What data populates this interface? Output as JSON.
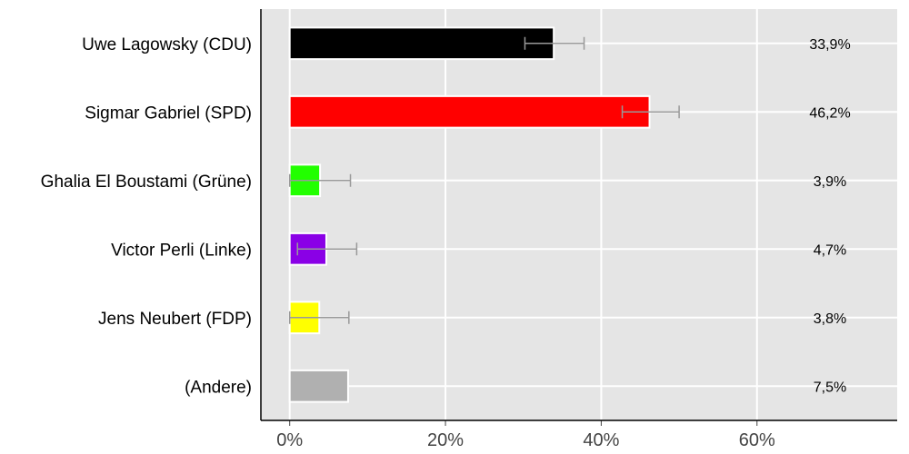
{
  "chart_data": {
    "type": "bar",
    "orientation": "horizontal",
    "categories": [
      "Uwe Lagowsky (CDU)",
      "Sigmar Gabriel (SPD)",
      "Ghalia El Boustami (Grüne)",
      "Victor Perli (Linke)",
      "Jens Neubert (FDP)",
      "(Andere)"
    ],
    "values": [
      33.9,
      46.2,
      3.9,
      4.7,
      3.8,
      7.5
    ],
    "value_labels": [
      "33,9%",
      "46,2%",
      "3,9%",
      "4,7%",
      "3,8%",
      "7,5%"
    ],
    "error_bars": [
      [
        30.2,
        37.8
      ],
      [
        42.7,
        50.0
      ],
      [
        0.0,
        7.8
      ],
      [
        1.0,
        8.6
      ],
      [
        0.0,
        7.6
      ],
      null
    ],
    "colors": [
      "#000000",
      "#ff0000",
      "#22ff00",
      "#8a00e6",
      "#ffff00",
      "#b0b0b0"
    ],
    "xticks": [
      0,
      20,
      40,
      60
    ],
    "xtick_labels": [
      "0%",
      "20%",
      "40%",
      "60%"
    ],
    "xlim": [
      -3.7,
      78
    ],
    "grid": true,
    "background": "#e5e5e5",
    "error_bar_color": "#999999",
    "title": "",
    "xlabel": "",
    "ylabel": ""
  }
}
